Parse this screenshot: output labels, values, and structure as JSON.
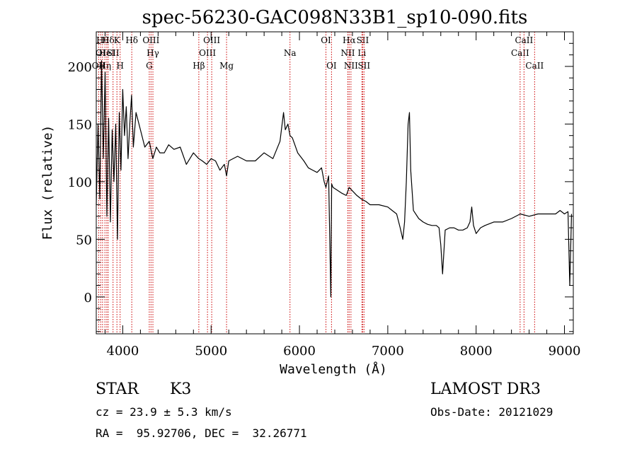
{
  "chart_data": {
    "type": "line",
    "title": "spec-56230-GAC098N33B1_sp10-090.fits",
    "xlabel": "Wavelength (Å)",
    "ylabel": "Flux (relative)",
    "xlim": [
      3700,
      9100
    ],
    "ylim": [
      -32,
      230
    ],
    "xticks": [
      4000,
      5000,
      6000,
      7000,
      8000,
      9000
    ],
    "yticks": [
      0,
      50,
      100,
      150,
      200
    ],
    "minor_xtick_step": 200,
    "minor_ytick_step": 10,
    "grid": false,
    "line_color": "#000000",
    "marker_color": "#cc0000",
    "series": [
      {
        "x": [
          3700,
          3720,
          3740,
          3760,
          3780,
          3800,
          3820,
          3840,
          3860,
          3880,
          3900,
          3920,
          3940,
          3960,
          3980,
          4000,
          4020,
          4040,
          4060,
          4080,
          4100,
          4120,
          4150,
          4200,
          4250,
          4300,
          4340,
          4380,
          4420,
          4470,
          4520,
          4580,
          4650,
          4720,
          4800,
          4860,
          4900,
          4950,
          5000,
          5050,
          5100,
          5150,
          5175,
          5200,
          5300,
          5400,
          5500,
          5600,
          5700,
          5780,
          5820,
          5840,
          5870,
          5893,
          5920,
          5980,
          6050,
          6100,
          6150,
          6200,
          6250,
          6280,
          6300,
          6330,
          6355,
          6365,
          6380,
          6420,
          6480,
          6530,
          6563,
          6600,
          6650,
          6700,
          6750,
          6800,
          6900,
          7000,
          7050,
          7100,
          7140,
          7170,
          7190,
          7210,
          7230,
          7245,
          7260,
          7290,
          7350,
          7400,
          7450,
          7500,
          7550,
          7580,
          7600,
          7620,
          7650,
          7700,
          7750,
          7800,
          7850,
          7900,
          7930,
          7950,
          7970,
          8000,
          8050,
          8100,
          8200,
          8300,
          8400,
          8500,
          8600,
          8700,
          8800,
          8900,
          8950,
          9000,
          9040,
          9060,
          9080
        ],
        "values": [
          80,
          150,
          85,
          205,
          120,
          195,
          70,
          155,
          65,
          145,
          100,
          150,
          50,
          160,
          110,
          180,
          140,
          165,
          120,
          150,
          175,
          130,
          160,
          145,
          130,
          135,
          120,
          130,
          125,
          125,
          132,
          128,
          130,
          115,
          125,
          120,
          118,
          115,
          120,
          118,
          110,
          115,
          105,
          118,
          122,
          118,
          118,
          125,
          120,
          135,
          160,
          145,
          150,
          140,
          138,
          125,
          118,
          112,
          110,
          108,
          112,
          100,
          95,
          105,
          0,
          98,
          95,
          93,
          90,
          88,
          95,
          92,
          88,
          85,
          83,
          80,
          80,
          78,
          75,
          72,
          60,
          50,
          65,
          100,
          150,
          160,
          110,
          75,
          68,
          65,
          63,
          62,
          62,
          60,
          45,
          20,
          58,
          60,
          60,
          58,
          58,
          60,
          65,
          78,
          62,
          55,
          60,
          62,
          65,
          65,
          68,
          72,
          70,
          72,
          72,
          72,
          75,
          72,
          74,
          10,
          72
        ]
      }
    ],
    "line_markers": [
      {
        "wavelength": 3727,
        "label": "OII",
        "row": 2
      },
      {
        "wavelength": 3750,
        "label": "OI",
        "row": 1
      },
      {
        "wavelength": 3771,
        "label": "Hθ",
        "row": 0
      },
      {
        "wavelength": 3798,
        "label": "Hη",
        "row": 2
      },
      {
        "wavelength": 3819,
        "label": "HeI",
        "row": 1
      },
      {
        "wavelength": 3835,
        "label": "Hδ",
        "row": 0
      },
      {
        "wavelength": 3890,
        "label": "SII",
        "row": 1
      },
      {
        "wavelength": 3934,
        "label": "K",
        "row": 0
      },
      {
        "wavelength": 3970,
        "label": "H",
        "row": 2
      },
      {
        "wavelength": 4102,
        "label": "Hδ",
        "row": 0
      },
      {
        "wavelength": 4300,
        "label": "G",
        "row": 2
      },
      {
        "wavelength": 4320,
        "label": "OIII",
        "row": 0
      },
      {
        "wavelength": 4341,
        "label": "Hγ",
        "row": 1
      },
      {
        "wavelength": 4861,
        "label": "Hβ",
        "row": 2
      },
      {
        "wavelength": 4959,
        "label": "OIII",
        "row": 1
      },
      {
        "wavelength": 5007,
        "label": "OIII",
        "row": 0
      },
      {
        "wavelength": 5175,
        "label": "Mg",
        "row": 2
      },
      {
        "wavelength": 5893,
        "label": "Na",
        "row": 1
      },
      {
        "wavelength": 6300,
        "label": "OI",
        "row": 0
      },
      {
        "wavelength": 6363,
        "label": "OI",
        "row": 2
      },
      {
        "wavelength": 6548,
        "label": "NII",
        "row": 1
      },
      {
        "wavelength": 6563,
        "label": "Hα",
        "row": 0
      },
      {
        "wavelength": 6583,
        "label": "NII",
        "row": 2
      },
      {
        "wavelength": 6707,
        "label": "Li",
        "row": 1
      },
      {
        "wavelength": 6716,
        "label": "SII",
        "row": 0
      },
      {
        "wavelength": 6731,
        "label": "SII",
        "row": 2
      },
      {
        "wavelength": 8498,
        "label": "CaII",
        "row": 1
      },
      {
        "wavelength": 8542,
        "label": "CaII",
        "row": 0
      },
      {
        "wavelength": 8662,
        "label": "CaII",
        "row": 2
      }
    ]
  },
  "info": {
    "class": "STAR",
    "subclass": "K3",
    "survey": "LAMOST DR3",
    "redshift": "cz = 23.9 ± 5.3 km/s",
    "obs_date": "Obs-Date: 20121029",
    "coordinates": "RA =  95.92706, DEC =  32.26771"
  }
}
